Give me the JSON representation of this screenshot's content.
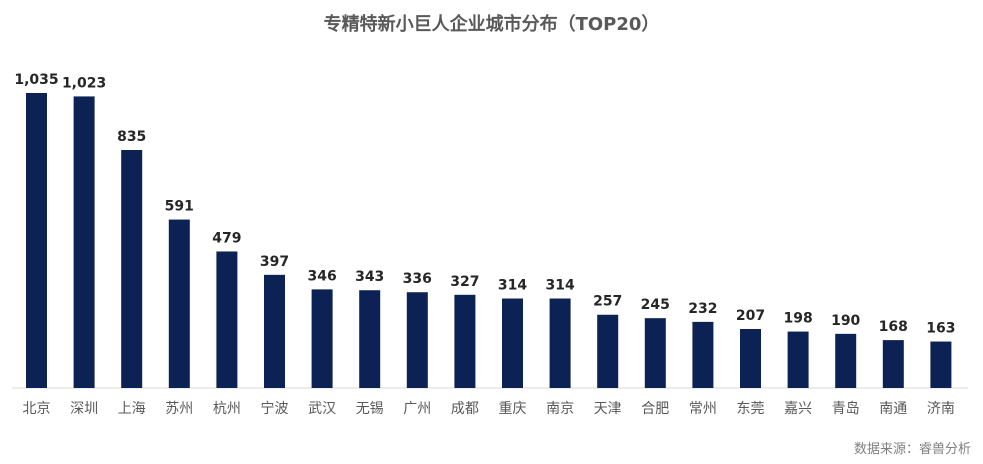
{
  "chart_data": {
    "type": "bar",
    "title": "专精特新小巨人企业城市分布（TOP20）",
    "categories": [
      "北京",
      "深圳",
      "上海",
      "苏州",
      "杭州",
      "宁波",
      "武汉",
      "无锡",
      "广州",
      "成都",
      "重庆",
      "南京",
      "天津",
      "合肥",
      "常州",
      "东莞",
      "嘉兴",
      "青岛",
      "南通",
      "济南"
    ],
    "values": [
      1035,
      1023,
      835,
      591,
      479,
      397,
      346,
      343,
      336,
      327,
      314,
      314,
      257,
      245,
      232,
      207,
      198,
      190,
      168,
      163
    ],
    "value_labels": [
      "1,035",
      "1,023",
      "835",
      "591",
      "479",
      "397",
      "346",
      "343",
      "336",
      "327",
      "314",
      "314",
      "257",
      "245",
      "232",
      "207",
      "198",
      "190",
      "168",
      "163"
    ],
    "xlabel": "",
    "ylabel": "",
    "ylim": [
      0,
      1035
    ],
    "grid": false,
    "legend": "none",
    "bar_color": "#0d2254"
  },
  "source": "数据来源：睿兽分析"
}
